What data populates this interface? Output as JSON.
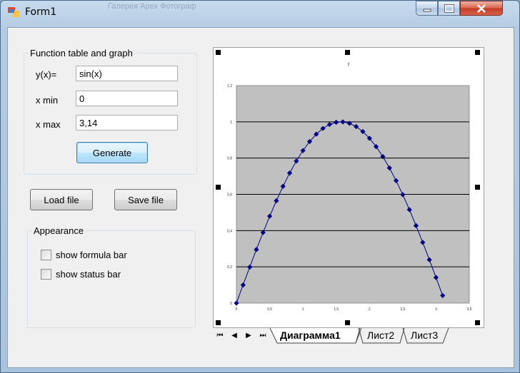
{
  "window": {
    "title": "Form1",
    "ghost_tab": "Галерея Арех Фотограф"
  },
  "function_group": {
    "legend": "Function table and graph",
    "y_label": "y(x)=",
    "y_value": "sin(x)",
    "xmin_label": "x min",
    "xmin_value": "0",
    "xmax_label": "x max",
    "xmax_value": "3,14",
    "generate_label": "Generate"
  },
  "file_buttons": {
    "load_label": "Load file",
    "save_label": "Save file"
  },
  "appearance_group": {
    "legend": "Appearance",
    "formula_bar_label": "show formula bar",
    "status_bar_label": "show status bar"
  },
  "chart_data": {
    "type": "scatter",
    "title": "y",
    "xlabel": "",
    "ylabel": "",
    "xlim": [
      0,
      3.5
    ],
    "ylim": [
      0,
      1.2
    ],
    "x_ticks": [
      "0",
      "0,5",
      "1",
      "1,5",
      "2",
      "2,5",
      "3",
      "3,5"
    ],
    "y_ticks": [
      "0",
      "0,2",
      "0,4",
      "0,6",
      "0,8",
      "1",
      "1,2"
    ],
    "grid": "horizontal",
    "plot_bg": "#c0c0c0",
    "marker_color": "#000080",
    "series": [
      {
        "x": [
          0,
          0.1,
          0.2,
          0.3,
          0.4,
          0.5,
          0.6,
          0.7,
          0.8,
          0.9,
          1.0,
          1.1,
          1.2,
          1.3,
          1.4,
          1.5,
          1.6,
          1.7,
          1.8,
          1.9,
          2.0,
          2.1,
          2.2,
          2.3,
          2.4,
          2.5,
          2.6,
          2.7,
          2.8,
          2.9,
          3.0,
          3.1
        ],
        "values": [
          0,
          0.0998,
          0.1987,
          0.2955,
          0.3894,
          0.4794,
          0.5646,
          0.6442,
          0.7174,
          0.7833,
          0.8415,
          0.8912,
          0.932,
          0.9636,
          0.9854,
          0.9975,
          0.9996,
          0.9917,
          0.9738,
          0.9463,
          0.9093,
          0.8632,
          0.8085,
          0.7457,
          0.6755,
          0.5985,
          0.5155,
          0.4274,
          0.335,
          0.2392,
          0.1411,
          0.0416
        ]
      }
    ]
  },
  "sheet_tabs": {
    "nav_first": "⏮",
    "nav_prev": "◀",
    "nav_next": "▶",
    "nav_last": "⏭",
    "tabs": [
      "Диаграмма1",
      "Лист2",
      "Лист3"
    ]
  }
}
